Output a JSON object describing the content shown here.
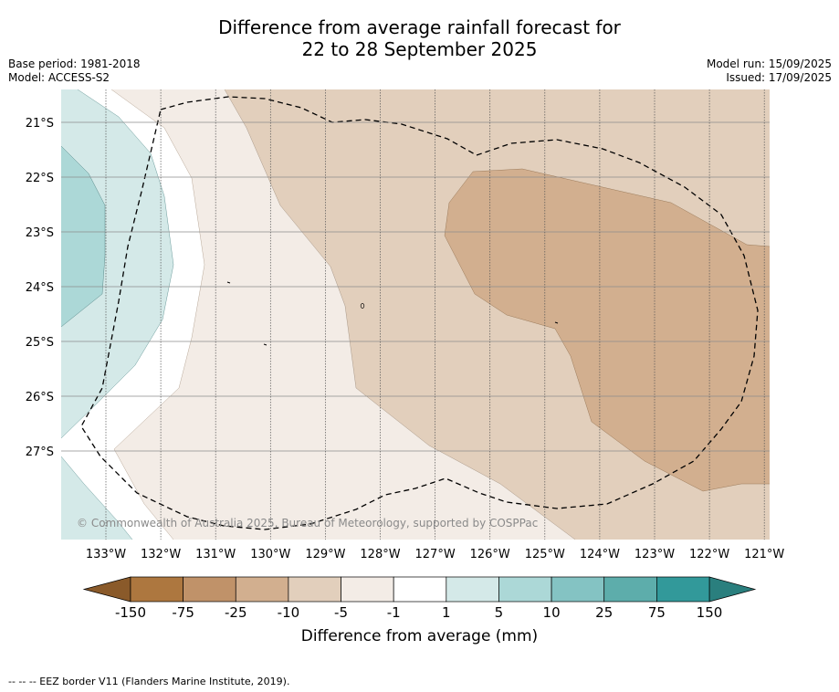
{
  "title": {
    "line1": "Difference from average rainfall forecast for",
    "line2": "22 to 28 September 2025"
  },
  "info_left": {
    "base_period": "Base period: 1981-2018",
    "model": "Model: ACCESS-S2"
  },
  "info_right": {
    "model_run": "Model run: 15/09/2025",
    "issued": "Issued: 17/09/2025"
  },
  "map": {
    "lat_labels": [
      "21°S",
      "22°S",
      "23°S",
      "24°S",
      "25°S",
      "26°S",
      "27°S"
    ],
    "lon_labels": [
      "133°W",
      "132°W",
      "131°W",
      "130°W",
      "129°W",
      "128°W",
      "127°W",
      "126°W",
      "125°W",
      "124°W",
      "123°W",
      "122°W",
      "121°W"
    ],
    "copyright": "© Commonwealth of Australia 2025, Bureau of Meteorology, supported by COSPPac"
  },
  "colorbar": {
    "tick_labels": [
      "-150",
      "-75",
      "-25",
      "-10",
      "-5",
      "-1",
      "1",
      "5",
      "10",
      "25",
      "75",
      "150"
    ],
    "colors": [
      "#ad773f",
      "#c09269",
      "#d2af8f",
      "#e2cfbc",
      "#f3ece6",
      "#ffffff",
      "#d4e9e8",
      "#acd8d7",
      "#84c3c3",
      "#5dadab",
      "#32999a"
    ],
    "extend_low_color": "#8a5a2a",
    "extend_high_color": "#2a7f7e",
    "title": "Difference from average (mm)"
  },
  "footnote": "--  --  -- EEZ border V11 (Flanders Marine Institute, 2019)."
}
